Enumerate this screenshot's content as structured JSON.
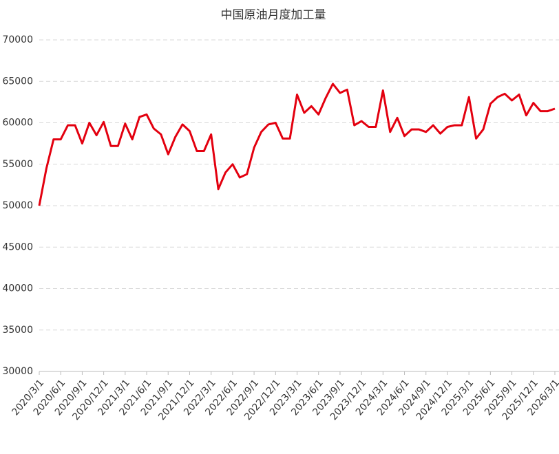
{
  "chart_data": {
    "type": "line",
    "title": "中国原油月度加工量",
    "categories": [
      "2020/3/1",
      null,
      null,
      "2020/6/1",
      null,
      null,
      "2020/9/1",
      null,
      null,
      "2020/12/1",
      null,
      null,
      "2021/3/1",
      null,
      null,
      "2021/6/1",
      null,
      null,
      "2021/9/1",
      null,
      null,
      "2021/12/1",
      null,
      null,
      "2022/3/1",
      null,
      null,
      "2022/6/1",
      null,
      null,
      "2022/9/1",
      null,
      null,
      "2022/12/1",
      null,
      null,
      "2023/3/1",
      null,
      null,
      "2023/6/1",
      null,
      null,
      "2023/9/1",
      null,
      null,
      "2023/12/1",
      null,
      null,
      "2024/3/1",
      null,
      null,
      "2024/6/1",
      null,
      null,
      "2024/9/1",
      null,
      null,
      "2024/12/1",
      null,
      null,
      "2025/3/1",
      null,
      null,
      "2025/6/1",
      null,
      null,
      "2025/9/1",
      null,
      null,
      "2025/12/1",
      null,
      null,
      "2026/3/1"
    ],
    "series": [
      {
        "color": "#e3000f",
        "values": [
          50000,
          54500,
          58000,
          58000,
          59700,
          59700,
          57500,
          60000,
          58500,
          60100,
          57200,
          57200,
          59900,
          58000,
          60700,
          61000,
          59300,
          58600,
          56200,
          58300,
          59800,
          59000,
          56600,
          56600,
          58600,
          52000,
          54000,
          55000,
          53400,
          53800,
          57000,
          58900,
          59800,
          60000,
          58100,
          58100,
          63400,
          61200,
          62000,
          61000,
          63000,
          64700,
          63600,
          64000,
          59700,
          60200,
          59500,
          59500,
          63900,
          58900,
          60600,
          58400,
          59200,
          59200,
          58900,
          59700,
          58700,
          59500,
          59700,
          59700,
          63100,
          58100,
          59200,
          62300,
          63100,
          63500,
          62700,
          63400,
          60900,
          62400,
          61400,
          61400,
          61700
        ]
      }
    ],
    "ylim": [
      30000,
      70000
    ],
    "yticks": [
      30000,
      35000,
      40000,
      45000,
      50000,
      55000,
      60000,
      65000,
      70000
    ],
    "grid": true
  }
}
